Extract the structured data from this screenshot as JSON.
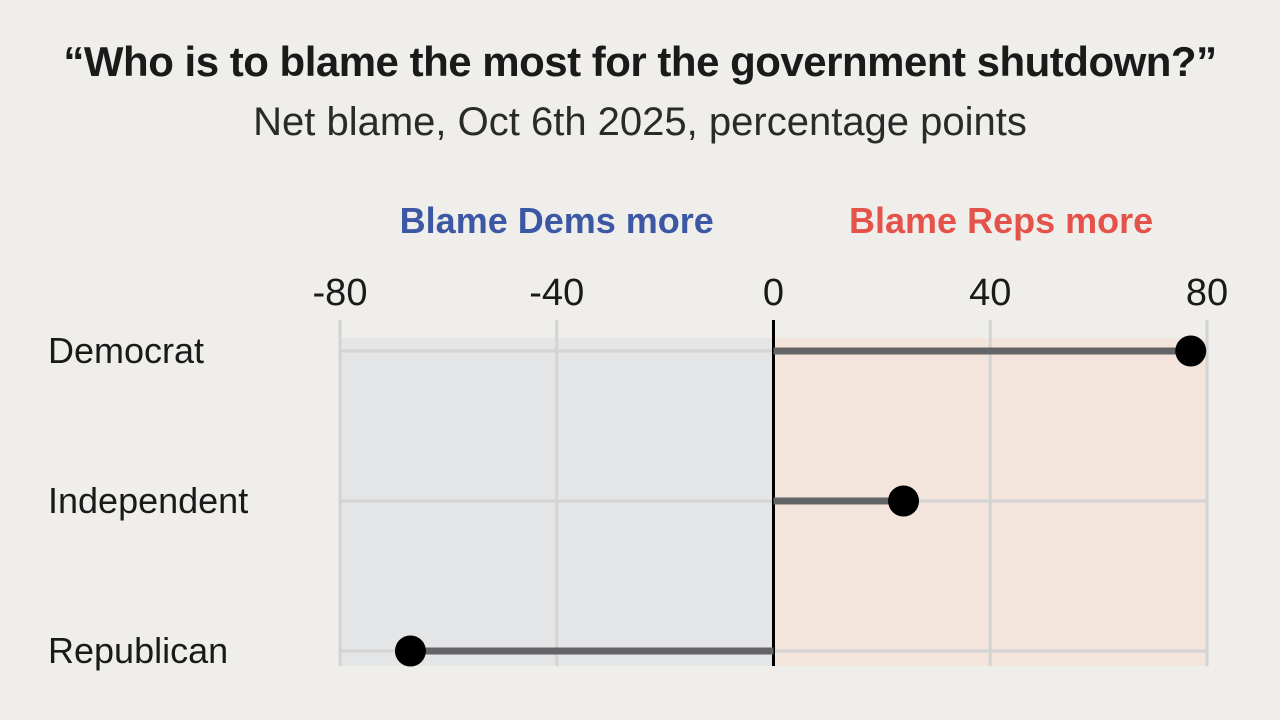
{
  "title": "“Who is to blame the most for the government shutdown?”",
  "subtitle": "Net blame, Oct 6th 2025, percentage points",
  "colors": {
    "background": "#f0eeeb",
    "dems_region": "#e4e5e7",
    "reps_region": "#f3e5dc",
    "dems_label": "#3c58a4",
    "reps_label": "#e4524a",
    "bar": "#636466",
    "dot": "#000000",
    "grid": "#d3d3d3",
    "zero_line": "#000000"
  },
  "chart_data": {
    "type": "dot",
    "region_labels": {
      "negative": "Blame Dems more",
      "positive": "Blame Reps more"
    },
    "xlim": [
      -80,
      80
    ],
    "xticks": [
      -80,
      -40,
      0,
      40,
      80
    ],
    "xtick_labels": [
      "-80",
      "-40",
      "0",
      "40",
      "80"
    ],
    "categories": [
      "Democrat",
      "Independent",
      "Republican"
    ],
    "values": [
      77,
      24,
      -67
    ],
    "grid": true
  }
}
